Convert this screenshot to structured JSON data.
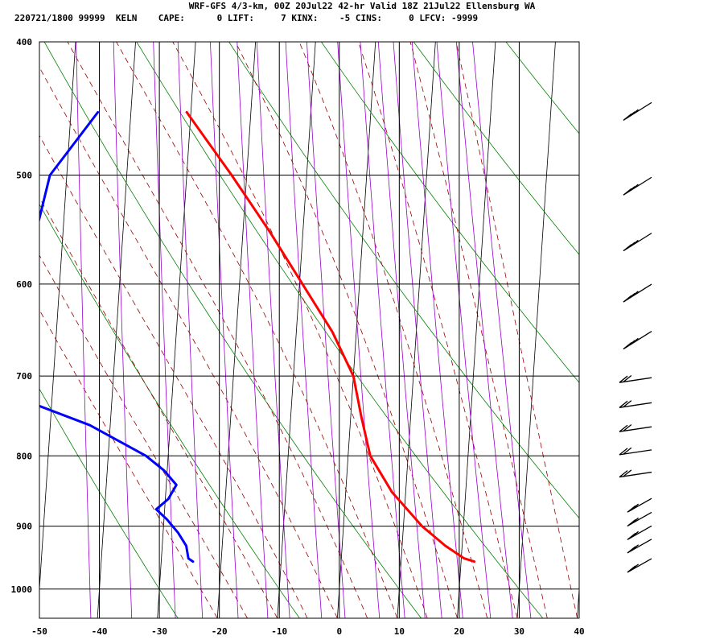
{
  "chart_data": {
    "type": "line",
    "title": "WRF-GFS 4/3-km, 00Z 20Jul22 42-hr Valid 18Z 21Jul22 Ellensburg WA",
    "subtitle": "220721/1800 99999  KELN    CAPE:      0 LIFT:     7 KINX:    -5 CINS:     0 LFCV: -9999",
    "xlabel": "",
    "ylabel": "",
    "y_scale": "log",
    "y_reversed": true,
    "xlim": [
      -50,
      40
    ],
    "ylim": [
      1050,
      400
    ],
    "x_ticks": [
      -50,
      -40,
      -30,
      -20,
      -10,
      0,
      10,
      20,
      30,
      40
    ],
    "y_ticks": [
      400,
      500,
      600,
      700,
      800,
      900,
      1000
    ],
    "x_tick_labels": [
      "-50",
      "-40",
      "-30",
      "-20",
      "-10",
      "0",
      "10",
      "20",
      "30",
      "40"
    ],
    "y_tick_labels": [
      "400",
      "500",
      "600",
      "700",
      "800",
      "900",
      "1000"
    ],
    "grid": true,
    "skew_per_decade": 113,
    "series": [
      {
        "color": "#ff0000",
        "points": [
          {
            "p": 450,
            "t": -30.7
          },
          {
            "p": 500,
            "t": -22.5
          },
          {
            "p": 550,
            "t": -15.5
          },
          {
            "p": 600,
            "t": -9.5
          },
          {
            "p": 650,
            "t": -4.0
          },
          {
            "p": 700,
            "t": 0.0
          },
          {
            "p": 750,
            "t": 1.8
          },
          {
            "p": 800,
            "t": 3.7
          },
          {
            "p": 850,
            "t": 7.7
          },
          {
            "p": 900,
            "t": 13.1
          },
          {
            "p": 930,
            "t": 17.2
          },
          {
            "p": 950,
            "t": 20.5
          },
          {
            "p": 955,
            "t": 22.2
          }
        ]
      },
      {
        "color": "#0000ff",
        "points": [
          {
            "p": 450,
            "t": -45.5
          },
          {
            "p": 500,
            "t": -52.8
          },
          {
            "p": 550,
            "t": -54.5
          },
          {
            "p": 600,
            "t": -56.0
          },
          {
            "p": 650,
            "t": -55.3
          },
          {
            "p": 700,
            "t": -56.3
          },
          {
            "p": 730,
            "t": -54.2
          },
          {
            "p": 760,
            "t": -43.4
          },
          {
            "p": 800,
            "t": -33.7
          },
          {
            "p": 820,
            "t": -30.5
          },
          {
            "p": 840,
            "t": -28.3
          },
          {
            "p": 860,
            "t": -29.5
          },
          {
            "p": 875,
            "t": -31.4
          },
          {
            "p": 890,
            "t": -29.5
          },
          {
            "p": 910,
            "t": -27.5
          },
          {
            "p": 930,
            "t": -26.0
          },
          {
            "p": 950,
            "t": -25.5
          },
          {
            "p": 955,
            "t": -24.7
          }
        ]
      }
    ],
    "background_lines": {
      "isotherm_color": "#000000",
      "dry_adiabat_color": "#008000",
      "moist_adiabat_color": "#990000",
      "mixing_ratio_color": "#9900cc"
    },
    "wind_barbs": {
      "color": "#000000",
      "pressures": [
        450,
        510,
        560,
        610,
        660,
        700,
        730,
        760,
        790,
        820,
        850,
        870,
        890,
        910,
        940
      ]
    }
  }
}
